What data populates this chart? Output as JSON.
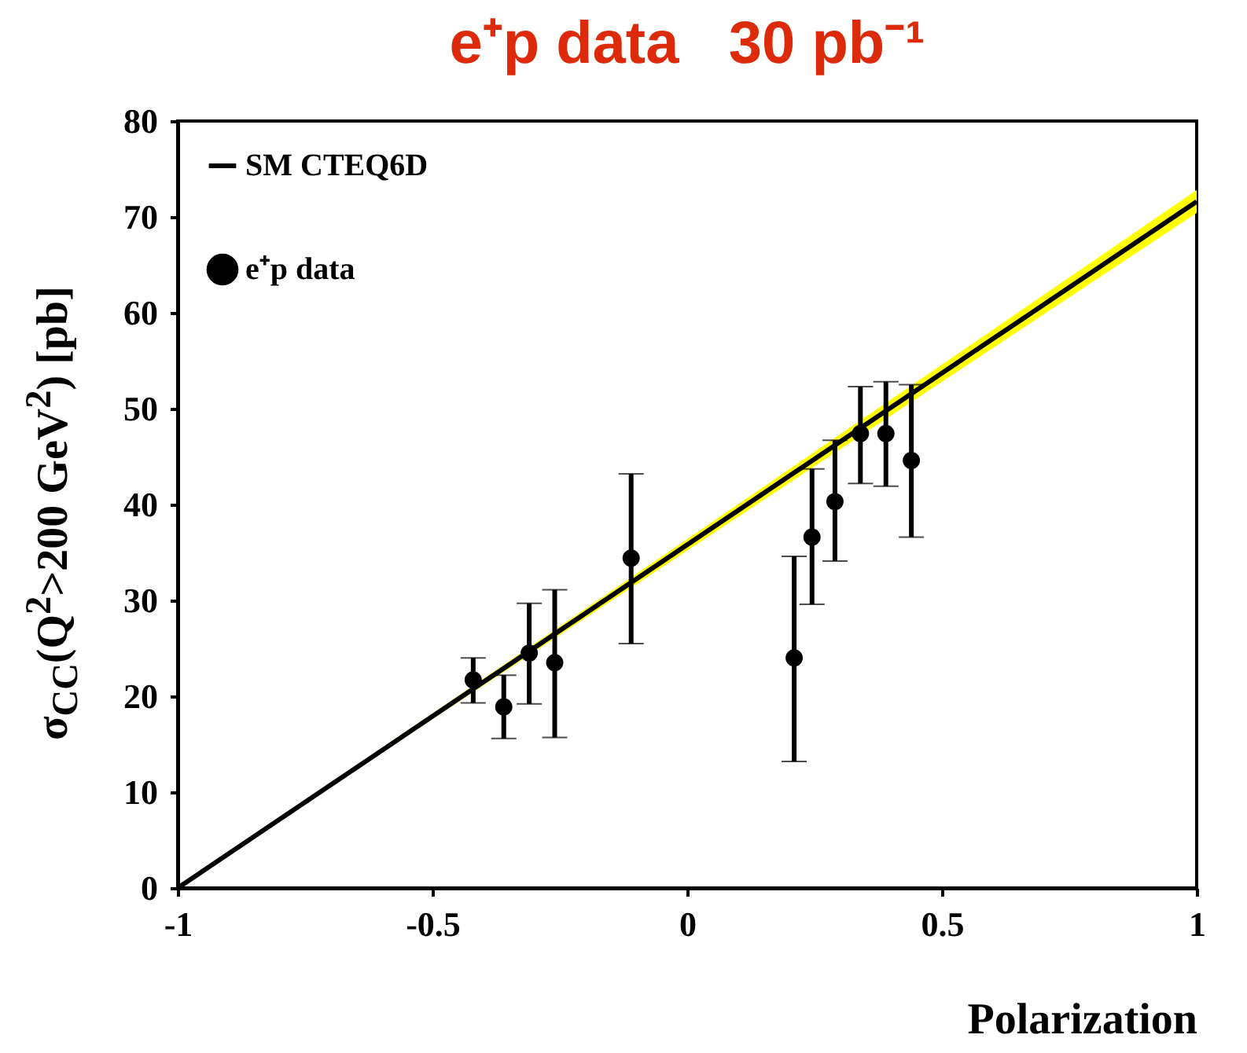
{
  "chart_data": {
    "type": "scatter",
    "title": "e⁺p data   30 pb⁻¹",
    "xlabel": "Polarization",
    "ylabel": "σ$_{CC}$(Q$^{2}$>200 GeV$^{2}$) [pb]",
    "xlim": [
      -1,
      1
    ],
    "ylim": [
      0,
      80
    ],
    "xticks": [
      -1,
      -0.5,
      0,
      0.5,
      1
    ],
    "yticks": [
      0,
      10,
      20,
      30,
      40,
      50,
      60,
      70,
      80
    ],
    "legend": "top left",
    "grid": false,
    "series": [
      {
        "type": "line",
        "name": "SM CTEQ6D",
        "color": "#000000",
        "x": [
          -1,
          1
        ],
        "values": [
          0,
          71.6
        ],
        "lower": [
          0,
          70.4
        ],
        "upper": [
          0,
          72.8
        ]
      },
      {
        "type": "scatter",
        "name": "e⁺p data",
        "color": "#000000",
        "marker": "circle",
        "x": [
          -0.42,
          -0.36,
          -0.31,
          -0.26,
          -0.11,
          0.21,
          0.245,
          0.29,
          0.34,
          0.39,
          0.44
        ],
        "values": [
          21.7,
          18.9,
          24.5,
          23.5,
          34.4,
          24.0,
          36.6,
          40.3,
          47.4,
          47.4,
          44.6
        ],
        "errors": [
          [
            19.3,
            24.0
          ],
          [
            15.6,
            22.2
          ],
          [
            19.2,
            29.7
          ],
          [
            15.7,
            31.1
          ],
          [
            25.5,
            43.2
          ],
          [
            13.2,
            34.6
          ],
          [
            29.6,
            43.7
          ],
          [
            34.1,
            46.7
          ],
          [
            42.2,
            52.3
          ],
          [
            41.9,
            52.8
          ],
          [
            36.6,
            52.5
          ]
        ]
      }
    ]
  }
}
